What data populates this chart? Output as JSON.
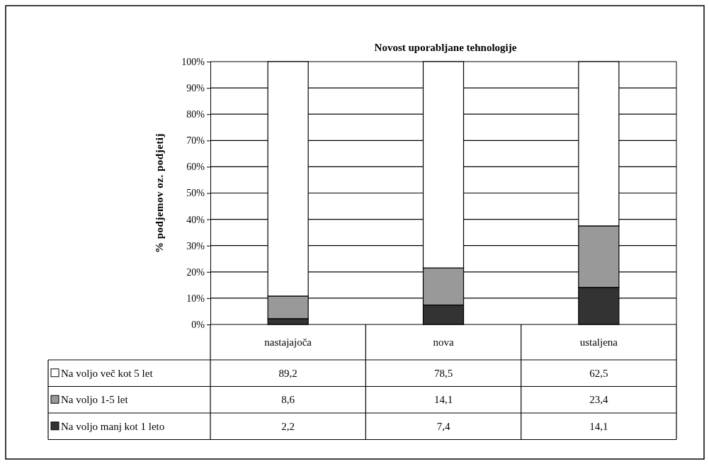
{
  "chart_data": {
    "type": "bar",
    "stacked": true,
    "title": "Novost uporabljane tehnologije",
    "ylabel": "% podjemov oz. podjetij",
    "categories": [
      "nastajajoča",
      "nova",
      "ustaljena"
    ],
    "series": [
      {
        "name": "Na voljo manj kot 1 leto",
        "color": "#333333",
        "values": [
          2.2,
          7.4,
          14.1
        ],
        "value_labels": [
          "2,2",
          "7,4",
          "14,1"
        ]
      },
      {
        "name": "Na voljo 1-5 let",
        "color": "#999999",
        "values": [
          8.6,
          14.1,
          23.4
        ],
        "value_labels": [
          "8,6",
          "14,1",
          "23,4"
        ]
      },
      {
        "name": "Na voljo več kot 5 let",
        "color": "#ffffff",
        "values": [
          89.2,
          78.5,
          62.5
        ],
        "value_labels": [
          "89,2",
          "78,5",
          "62,5"
        ]
      }
    ],
    "ylim": [
      0,
      100
    ],
    "yticks": [
      {
        "value": 0,
        "label": "0%"
      },
      {
        "value": 10,
        "label": "10%"
      },
      {
        "value": 20,
        "label": "20%"
      },
      {
        "value": 30,
        "label": "30%"
      },
      {
        "value": 40,
        "label": "40%"
      },
      {
        "value": 50,
        "label": "50%"
      },
      {
        "value": 60,
        "label": "60%"
      },
      {
        "value": 70,
        "label": "70%"
      },
      {
        "value": 80,
        "label": "80%"
      },
      {
        "value": 90,
        "label": "90%"
      },
      {
        "value": 100,
        "label": "100%"
      }
    ],
    "grid": "y",
    "legend": "bottom"
  }
}
